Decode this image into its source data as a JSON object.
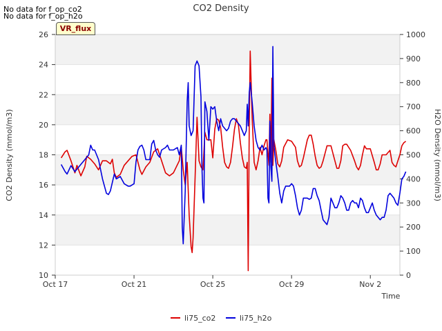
{
  "notes": [
    "No data for f_op_co2",
    "No data for f_op_h2o"
  ],
  "badge": "VR_flux",
  "chart_data": {
    "type": "line",
    "title": "CO2 Density",
    "xlabel": "Time",
    "ylabel": "CO2 Density (mmol/m3)",
    "y2label": "H2O Density (mmol/m3)",
    "ylim": [
      10,
      26
    ],
    "y2lim": [
      0,
      1000
    ],
    "xlim_days": [
      0,
      17.5
    ],
    "x_ticks": [
      {
        "day": 0,
        "label": "Oct 17"
      },
      {
        "day": 4,
        "label": "Oct 21"
      },
      {
        "day": 8,
        "label": "Oct 25"
      },
      {
        "day": 12,
        "label": "Oct 29"
      },
      {
        "day": 16,
        "label": "Nov 2"
      }
    ],
    "y_ticks": [
      10,
      12,
      14,
      16,
      18,
      20,
      22,
      24,
      26
    ],
    "y2_ticks": [
      0,
      100,
      200,
      300,
      400,
      500,
      600,
      700,
      800,
      900,
      1000
    ],
    "grid_bands": true,
    "legend_position": "bottom-center",
    "series": [
      {
        "name": "li75_co2",
        "axis": "left",
        "color": "#dd0000",
        "points": [
          [
            0.3,
            17.8
          ],
          [
            0.5,
            18.2
          ],
          [
            0.6,
            18.3
          ],
          [
            0.8,
            17.6
          ],
          [
            1.0,
            16.8
          ],
          [
            1.1,
            17.3
          ],
          [
            1.3,
            16.6
          ],
          [
            1.5,
            17.2
          ],
          [
            1.6,
            17.9
          ],
          [
            1.8,
            17.7
          ],
          [
            2.0,
            17.4
          ],
          [
            2.2,
            17.0
          ],
          [
            2.4,
            17.6
          ],
          [
            2.6,
            17.6
          ],
          [
            2.8,
            17.4
          ],
          [
            2.9,
            17.7
          ],
          [
            3.0,
            16.8
          ],
          [
            3.1,
            16.5
          ],
          [
            3.3,
            16.7
          ],
          [
            3.5,
            17.3
          ],
          [
            3.7,
            17.6
          ],
          [
            3.9,
            17.9
          ],
          [
            4.1,
            18.0
          ],
          [
            4.2,
            17.5
          ],
          [
            4.3,
            17.0
          ],
          [
            4.4,
            16.7
          ],
          [
            4.6,
            17.2
          ],
          [
            4.8,
            17.5
          ],
          [
            5.0,
            18.2
          ],
          [
            5.2,
            18.4
          ],
          [
            5.4,
            17.6
          ],
          [
            5.6,
            16.8
          ],
          [
            5.8,
            16.6
          ],
          [
            6.0,
            16.8
          ],
          [
            6.3,
            17.6
          ],
          [
            6.4,
            18.5
          ],
          [
            6.5,
            17.0
          ],
          [
            6.6,
            16.0
          ],
          [
            6.7,
            17.5
          ],
          [
            6.8,
            14.0
          ],
          [
            6.9,
            11.9
          ],
          [
            6.95,
            11.5
          ],
          [
            7.0,
            12.5
          ],
          [
            7.1,
            16.5
          ],
          [
            7.2,
            20.5
          ],
          [
            7.3,
            17.6
          ],
          [
            7.4,
            17.2
          ],
          [
            7.5,
            17.0
          ],
          [
            7.6,
            19.5
          ],
          [
            7.7,
            19.0
          ],
          [
            7.9,
            19.0
          ],
          [
            8.0,
            17.8
          ],
          [
            8.1,
            19.7
          ],
          [
            8.2,
            20.4
          ],
          [
            8.3,
            20.3
          ],
          [
            8.4,
            19.8
          ],
          [
            8.5,
            18.5
          ],
          [
            8.6,
            17.5
          ],
          [
            8.7,
            17.2
          ],
          [
            8.8,
            17.1
          ],
          [
            8.9,
            17.5
          ],
          [
            9.0,
            18.5
          ],
          [
            9.1,
            19.7
          ],
          [
            9.2,
            20.4
          ],
          [
            9.3,
            20.0
          ],
          [
            9.4,
            18.8
          ],
          [
            9.5,
            17.8
          ],
          [
            9.6,
            17.2
          ],
          [
            9.7,
            17.1
          ],
          [
            9.75,
            17.5
          ],
          [
            9.8,
            10.3
          ],
          [
            9.85,
            20.0
          ],
          [
            9.9,
            24.9
          ],
          [
            10.0,
            20.5
          ],
          [
            10.1,
            17.5
          ],
          [
            10.2,
            17.0
          ],
          [
            10.3,
            17.6
          ],
          [
            10.4,
            18.5
          ],
          [
            10.5,
            18.0
          ],
          [
            10.6,
            18.6
          ],
          [
            10.7,
            19.0
          ],
          [
            10.75,
            19.0
          ],
          [
            10.85,
            17.3
          ],
          [
            10.9,
            20.7
          ],
          [
            10.95,
            17.5
          ],
          [
            11.0,
            23.1
          ],
          [
            11.05,
            17.3
          ],
          [
            11.1,
            19.0
          ],
          [
            11.2,
            18.3
          ],
          [
            11.3,
            17.4
          ],
          [
            11.4,
            17.2
          ],
          [
            11.5,
            17.6
          ],
          [
            11.6,
            18.5
          ],
          [
            11.8,
            19.0
          ],
          [
            12.0,
            18.9
          ],
          [
            12.2,
            18.5
          ],
          [
            12.3,
            17.6
          ],
          [
            12.4,
            17.2
          ],
          [
            12.5,
            17.3
          ],
          [
            12.6,
            17.8
          ],
          [
            12.8,
            19.0
          ],
          [
            12.9,
            19.3
          ],
          [
            13.0,
            19.3
          ],
          [
            13.1,
            18.7
          ],
          [
            13.2,
            17.9
          ],
          [
            13.3,
            17.3
          ],
          [
            13.4,
            17.1
          ],
          [
            13.5,
            17.2
          ],
          [
            13.6,
            17.6
          ],
          [
            13.8,
            18.6
          ],
          [
            14.0,
            18.6
          ],
          [
            14.2,
            17.6
          ],
          [
            14.3,
            17.1
          ],
          [
            14.4,
            17.1
          ],
          [
            14.5,
            17.6
          ],
          [
            14.6,
            18.6
          ],
          [
            14.7,
            18.7
          ],
          [
            14.8,
            18.7
          ],
          [
            15.0,
            18.3
          ],
          [
            15.2,
            17.6
          ],
          [
            15.3,
            17.2
          ],
          [
            15.4,
            17.0
          ],
          [
            15.5,
            17.3
          ],
          [
            15.6,
            18.0
          ],
          [
            15.7,
            18.6
          ],
          [
            15.8,
            18.4
          ],
          [
            16.0,
            18.4
          ],
          [
            16.2,
            17.5
          ],
          [
            16.3,
            17.0
          ],
          [
            16.4,
            17.0
          ],
          [
            16.5,
            17.4
          ],
          [
            16.6,
            18.0
          ],
          [
            16.8,
            18.0
          ],
          [
            17.0,
            18.3
          ],
          [
            17.1,
            17.5
          ],
          [
            17.2,
            17.3
          ],
          [
            17.3,
            17.2
          ],
          [
            17.4,
            17.6
          ],
          [
            17.5,
            18.0
          ],
          [
            17.6,
            18.6
          ],
          [
            17.7,
            18.8
          ],
          [
            17.8,
            18.9
          ]
        ]
      },
      {
        "name": "li75_h2o",
        "axis": "right",
        "color": "#0000dd",
        "points": [
          [
            0.3,
            460
          ],
          [
            0.5,
            430
          ],
          [
            0.6,
            420
          ],
          [
            0.8,
            455
          ],
          [
            1.0,
            430
          ],
          [
            1.2,
            450
          ],
          [
            1.4,
            470
          ],
          [
            1.5,
            480
          ],
          [
            1.7,
            500
          ],
          [
            1.8,
            540
          ],
          [
            1.9,
            520
          ],
          [
            2.0,
            520
          ],
          [
            2.2,
            480
          ],
          [
            2.4,
            400
          ],
          [
            2.6,
            340
          ],
          [
            2.7,
            335
          ],
          [
            2.8,
            350
          ],
          [
            3.0,
            420
          ],
          [
            3.1,
            400
          ],
          [
            3.3,
            410
          ],
          [
            3.5,
            380
          ],
          [
            3.7,
            370
          ],
          [
            3.8,
            370
          ],
          [
            4.0,
            380
          ],
          [
            4.1,
            470
          ],
          [
            4.2,
            520
          ],
          [
            4.3,
            535
          ],
          [
            4.4,
            540
          ],
          [
            4.5,
            520
          ],
          [
            4.6,
            480
          ],
          [
            4.8,
            480
          ],
          [
            4.9,
            545
          ],
          [
            5.0,
            560
          ],
          [
            5.1,
            520
          ],
          [
            5.2,
            500
          ],
          [
            5.3,
            490
          ],
          [
            5.4,
            520
          ],
          [
            5.6,
            530
          ],
          [
            5.7,
            540
          ],
          [
            5.8,
            520
          ],
          [
            5.9,
            520
          ],
          [
            6.0,
            520
          ],
          [
            6.2,
            530
          ],
          [
            6.3,
            500
          ],
          [
            6.4,
            540
          ],
          [
            6.45,
            200
          ],
          [
            6.5,
            130
          ],
          [
            6.6,
            350
          ],
          [
            6.7,
            720
          ],
          [
            6.75,
            800
          ],
          [
            6.8,
            620
          ],
          [
            6.9,
            580
          ],
          [
            7.0,
            600
          ],
          [
            7.1,
            870
          ],
          [
            7.2,
            890
          ],
          [
            7.3,
            870
          ],
          [
            7.4,
            740
          ],
          [
            7.45,
            450
          ],
          [
            7.5,
            320
          ],
          [
            7.55,
            300
          ],
          [
            7.6,
            720
          ],
          [
            7.7,
            680
          ],
          [
            7.8,
            560
          ],
          [
            7.9,
            700
          ],
          [
            8.0,
            690
          ],
          [
            8.1,
            700
          ],
          [
            8.2,
            640
          ],
          [
            8.3,
            600
          ],
          [
            8.4,
            650
          ],
          [
            8.5,
            620
          ],
          [
            8.7,
            600
          ],
          [
            8.8,
            610
          ],
          [
            8.9,
            640
          ],
          [
            9.0,
            650
          ],
          [
            9.1,
            650
          ],
          [
            9.2,
            640
          ],
          [
            9.3,
            630
          ],
          [
            9.4,
            620
          ],
          [
            9.5,
            600
          ],
          [
            9.6,
            580
          ],
          [
            9.7,
            600
          ],
          [
            9.75,
            710
          ],
          [
            9.8,
            620
          ],
          [
            9.85,
            760
          ],
          [
            9.9,
            800
          ],
          [
            10.0,
            720
          ],
          [
            10.1,
            620
          ],
          [
            10.2,
            560
          ],
          [
            10.3,
            530
          ],
          [
            10.4,
            520
          ],
          [
            10.5,
            540
          ],
          [
            10.6,
            520
          ],
          [
            10.7,
            530
          ],
          [
            10.75,
            520
          ],
          [
            10.8,
            320
          ],
          [
            10.85,
            300
          ],
          [
            10.9,
            640
          ],
          [
            10.95,
            450
          ],
          [
            11.0,
            390
          ],
          [
            11.05,
            950
          ],
          [
            11.1,
            540
          ],
          [
            11.2,
            470
          ],
          [
            11.3,
            410
          ],
          [
            11.4,
            340
          ],
          [
            11.5,
            300
          ],
          [
            11.6,
            350
          ],
          [
            11.7,
            370
          ],
          [
            11.8,
            370
          ],
          [
            11.9,
            370
          ],
          [
            12.0,
            380
          ],
          [
            12.1,
            370
          ],
          [
            12.2,
            330
          ],
          [
            12.3,
            280
          ],
          [
            12.4,
            250
          ],
          [
            12.5,
            270
          ],
          [
            12.6,
            320
          ],
          [
            12.8,
            320
          ],
          [
            12.9,
            315
          ],
          [
            13.0,
            320
          ],
          [
            13.1,
            360
          ],
          [
            13.2,
            360
          ],
          [
            13.3,
            330
          ],
          [
            13.4,
            310
          ],
          [
            13.5,
            270
          ],
          [
            13.6,
            230
          ],
          [
            13.7,
            220
          ],
          [
            13.8,
            210
          ],
          [
            13.9,
            240
          ],
          [
            14.0,
            320
          ],
          [
            14.1,
            300
          ],
          [
            14.2,
            280
          ],
          [
            14.3,
            280
          ],
          [
            14.4,
            300
          ],
          [
            14.5,
            330
          ],
          [
            14.6,
            320
          ],
          [
            14.7,
            300
          ],
          [
            14.8,
            270
          ],
          [
            14.9,
            270
          ],
          [
            15.0,
            300
          ],
          [
            15.1,
            310
          ],
          [
            15.2,
            300
          ],
          [
            15.3,
            300
          ],
          [
            15.4,
            280
          ],
          [
            15.5,
            320
          ],
          [
            15.6,
            310
          ],
          [
            15.7,
            280
          ],
          [
            15.8,
            260
          ],
          [
            15.9,
            260
          ],
          [
            16.0,
            280
          ],
          [
            16.1,
            300
          ],
          [
            16.2,
            270
          ],
          [
            16.3,
            250
          ],
          [
            16.4,
            240
          ],
          [
            16.5,
            230
          ],
          [
            16.6,
            240
          ],
          [
            16.7,
            240
          ],
          [
            16.8,
            270
          ],
          [
            16.9,
            330
          ],
          [
            17.0,
            340
          ],
          [
            17.1,
            330
          ],
          [
            17.2,
            320
          ],
          [
            17.3,
            300
          ],
          [
            17.4,
            290
          ],
          [
            17.5,
            340
          ],
          [
            17.6,
            400
          ],
          [
            17.7,
            410
          ],
          [
            17.8,
            430
          ]
        ]
      }
    ]
  }
}
